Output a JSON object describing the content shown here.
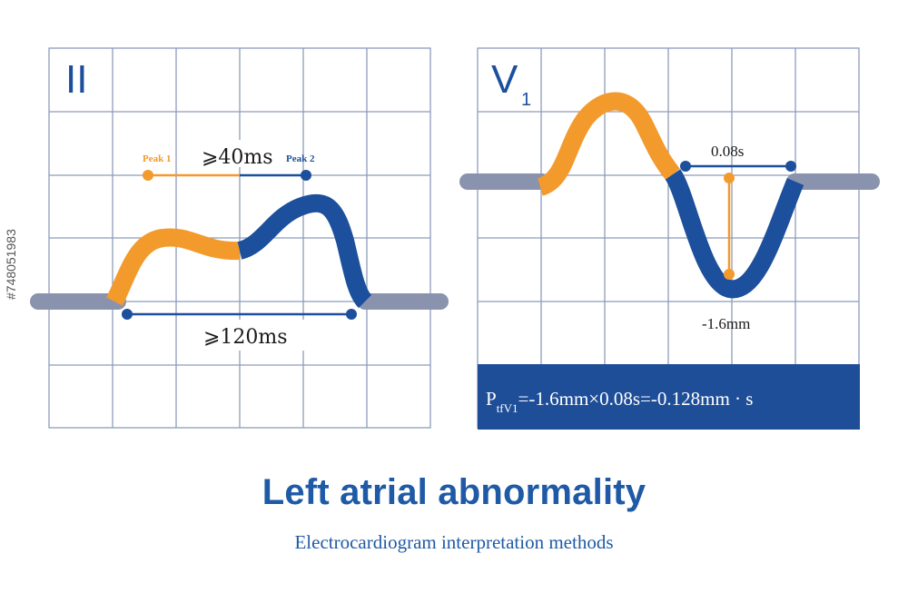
{
  "colors": {
    "grid": "#8e9bbb",
    "baseline": "#8a93ad",
    "orange": "#f39a2c",
    "blue": "#1c4f9c",
    "formula_bg": "#1f4e98",
    "title": "#1f5aa6"
  },
  "lead_ii": {
    "label": "II",
    "peak1_label": "Peak 1",
    "peak2_label": "Peak 2",
    "peak_interval": "⩾40ms",
    "duration": "⩾120ms"
  },
  "lead_v1": {
    "label": "V",
    "label_sub": "1",
    "width_label": "0.08s",
    "depth_label": "-1.6mm",
    "formula_main": "P",
    "formula_sub": "tfV1",
    "formula_rest": "=-1.6mm×0.08s=-0.128mm · s"
  },
  "title": "Left atrial abnormality",
  "subtitle": "Electrocardiogram interpretation methods",
  "side_id": "#748051983"
}
